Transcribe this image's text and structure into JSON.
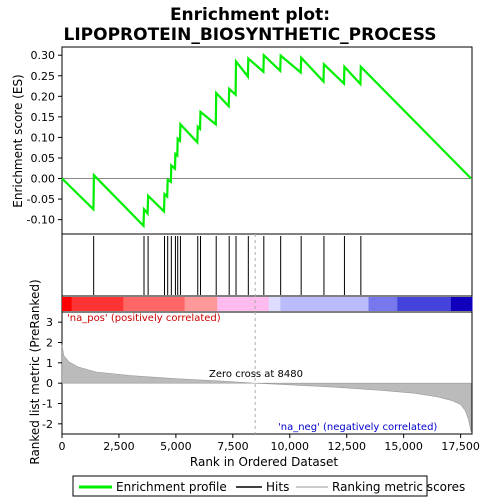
{
  "title_line1": "Enrichment plot:",
  "title_line2": "LIPOPROTEIN_BIOSYNTHETIC_PROCESS",
  "colors": {
    "enrichment_line": "#00ee00",
    "hits": "#000000",
    "metric_fill": "#bbbbbb",
    "zero_cross": "#aaaaaa",
    "pos_label": "#cc0000",
    "neg_label": "#0000cc"
  },
  "legend": {
    "enrichment": "Enrichment profile",
    "hits": "Hits",
    "metric": "Ranking metric scores"
  },
  "chart_data": [
    {
      "type": "line",
      "name": "enrichment_profile",
      "ylabel": "Enrichment score (ES)",
      "xlim": [
        0,
        18000
      ],
      "ylim": [
        -0.135,
        0.32
      ],
      "yticks": [
        -0.1,
        -0.05,
        0.0,
        0.05,
        0.1,
        0.15,
        0.2,
        0.25,
        0.3
      ],
      "ytick_labels": [
        "-0.10",
        "-0.05",
        "0.00",
        "0.05",
        "0.10",
        "0.15",
        "0.20",
        "0.25",
        "0.30"
      ],
      "points": [
        [
          0,
          0.0
        ],
        [
          1380,
          -0.075
        ],
        [
          1390,
          -0.035
        ],
        [
          1400,
          0.008
        ],
        [
          3580,
          -0.115
        ],
        [
          3600,
          -0.075
        ],
        [
          3760,
          -0.085
        ],
        [
          3780,
          -0.042
        ],
        [
          4480,
          -0.08
        ],
        [
          4500,
          -0.038
        ],
        [
          4620,
          -0.044
        ],
        [
          4640,
          -0.003
        ],
        [
          4780,
          -0.008
        ],
        [
          4800,
          0.032
        ],
        [
          4960,
          0.024
        ],
        [
          4980,
          0.06
        ],
        [
          5060,
          0.056
        ],
        [
          5080,
          0.097
        ],
        [
          5180,
          0.092
        ],
        [
          5200,
          0.132
        ],
        [
          5940,
          0.088
        ],
        [
          5960,
          0.126
        ],
        [
          6060,
          0.121
        ],
        [
          6080,
          0.162
        ],
        [
          6750,
          0.132
        ],
        [
          6770,
          0.208
        ],
        [
          7320,
          0.176
        ],
        [
          7340,
          0.218
        ],
        [
          7620,
          0.204
        ],
        [
          7640,
          0.285
        ],
        [
          8160,
          0.248
        ],
        [
          8180,
          0.292
        ],
        [
          8840,
          0.26
        ],
        [
          8860,
          0.3
        ],
        [
          9580,
          0.262
        ],
        [
          9600,
          0.299
        ],
        [
          10480,
          0.258
        ],
        [
          10500,
          0.294
        ],
        [
          11480,
          0.236
        ],
        [
          11500,
          0.278
        ],
        [
          12380,
          0.231
        ],
        [
          12400,
          0.272
        ],
        [
          13100,
          0.23
        ],
        [
          13120,
          0.272
        ],
        [
          17960,
          0.0
        ]
      ]
    },
    {
      "type": "hits",
      "name": "Hits",
      "x": [
        1390,
        3600,
        3780,
        4500,
        4640,
        4800,
        4980,
        5080,
        5200,
        5960,
        6080,
        6770,
        7340,
        7640,
        8180,
        8860,
        9600,
        10500,
        11500,
        12400,
        13120
      ]
    },
    {
      "type": "area",
      "name": "Ranking metric scores",
      "xlabel": "Rank in Ordered Dataset",
      "ylabel": "Ranked list metric (PreRanked)",
      "xlim": [
        0,
        18000
      ],
      "ylim": [
        -2.5,
        3.5
      ],
      "xticks": [
        0,
        2500,
        5000,
        7500,
        10000,
        12500,
        15000,
        17500
      ],
      "xtick_labels": [
        "0",
        "2,500",
        "5,000",
        "7,500",
        "10,000",
        "12,500",
        "15,000",
        "17,500"
      ],
      "yticks": [
        -2,
        -1,
        0,
        1,
        2,
        3
      ],
      "ytick_labels": [
        "-2",
        "-1",
        "0",
        "1",
        "2",
        "3"
      ],
      "x": [
        0,
        80,
        300,
        700,
        1500,
        3000,
        5000,
        7000,
        8480,
        10000,
        12000,
        14000,
        15500,
        16500,
        17100,
        17500,
        17700,
        17850,
        17960
      ],
      "values": [
        1.9,
        1.35,
        1.05,
        0.8,
        0.55,
        0.37,
        0.22,
        0.1,
        0.0,
        -0.08,
        -0.2,
        -0.35,
        -0.5,
        -0.68,
        -0.85,
        -1.05,
        -1.35,
        -1.8,
        -2.4
      ],
      "zero_cross_rank": 8480,
      "zero_cross_label": "Zero cross at 8480",
      "pos_label": "'na_pos' (positively correlated)",
      "neg_label": "'na_neg' (negatively correlated)"
    }
  ],
  "gradient_colors": [
    "#ff0000",
    "#ff3333",
    "#ff6666",
    "#ff9999",
    "#ffbbee",
    "#ddddff",
    "#bbbbff",
    "#7777ee",
    "#4444dd",
    "#1100bb"
  ]
}
